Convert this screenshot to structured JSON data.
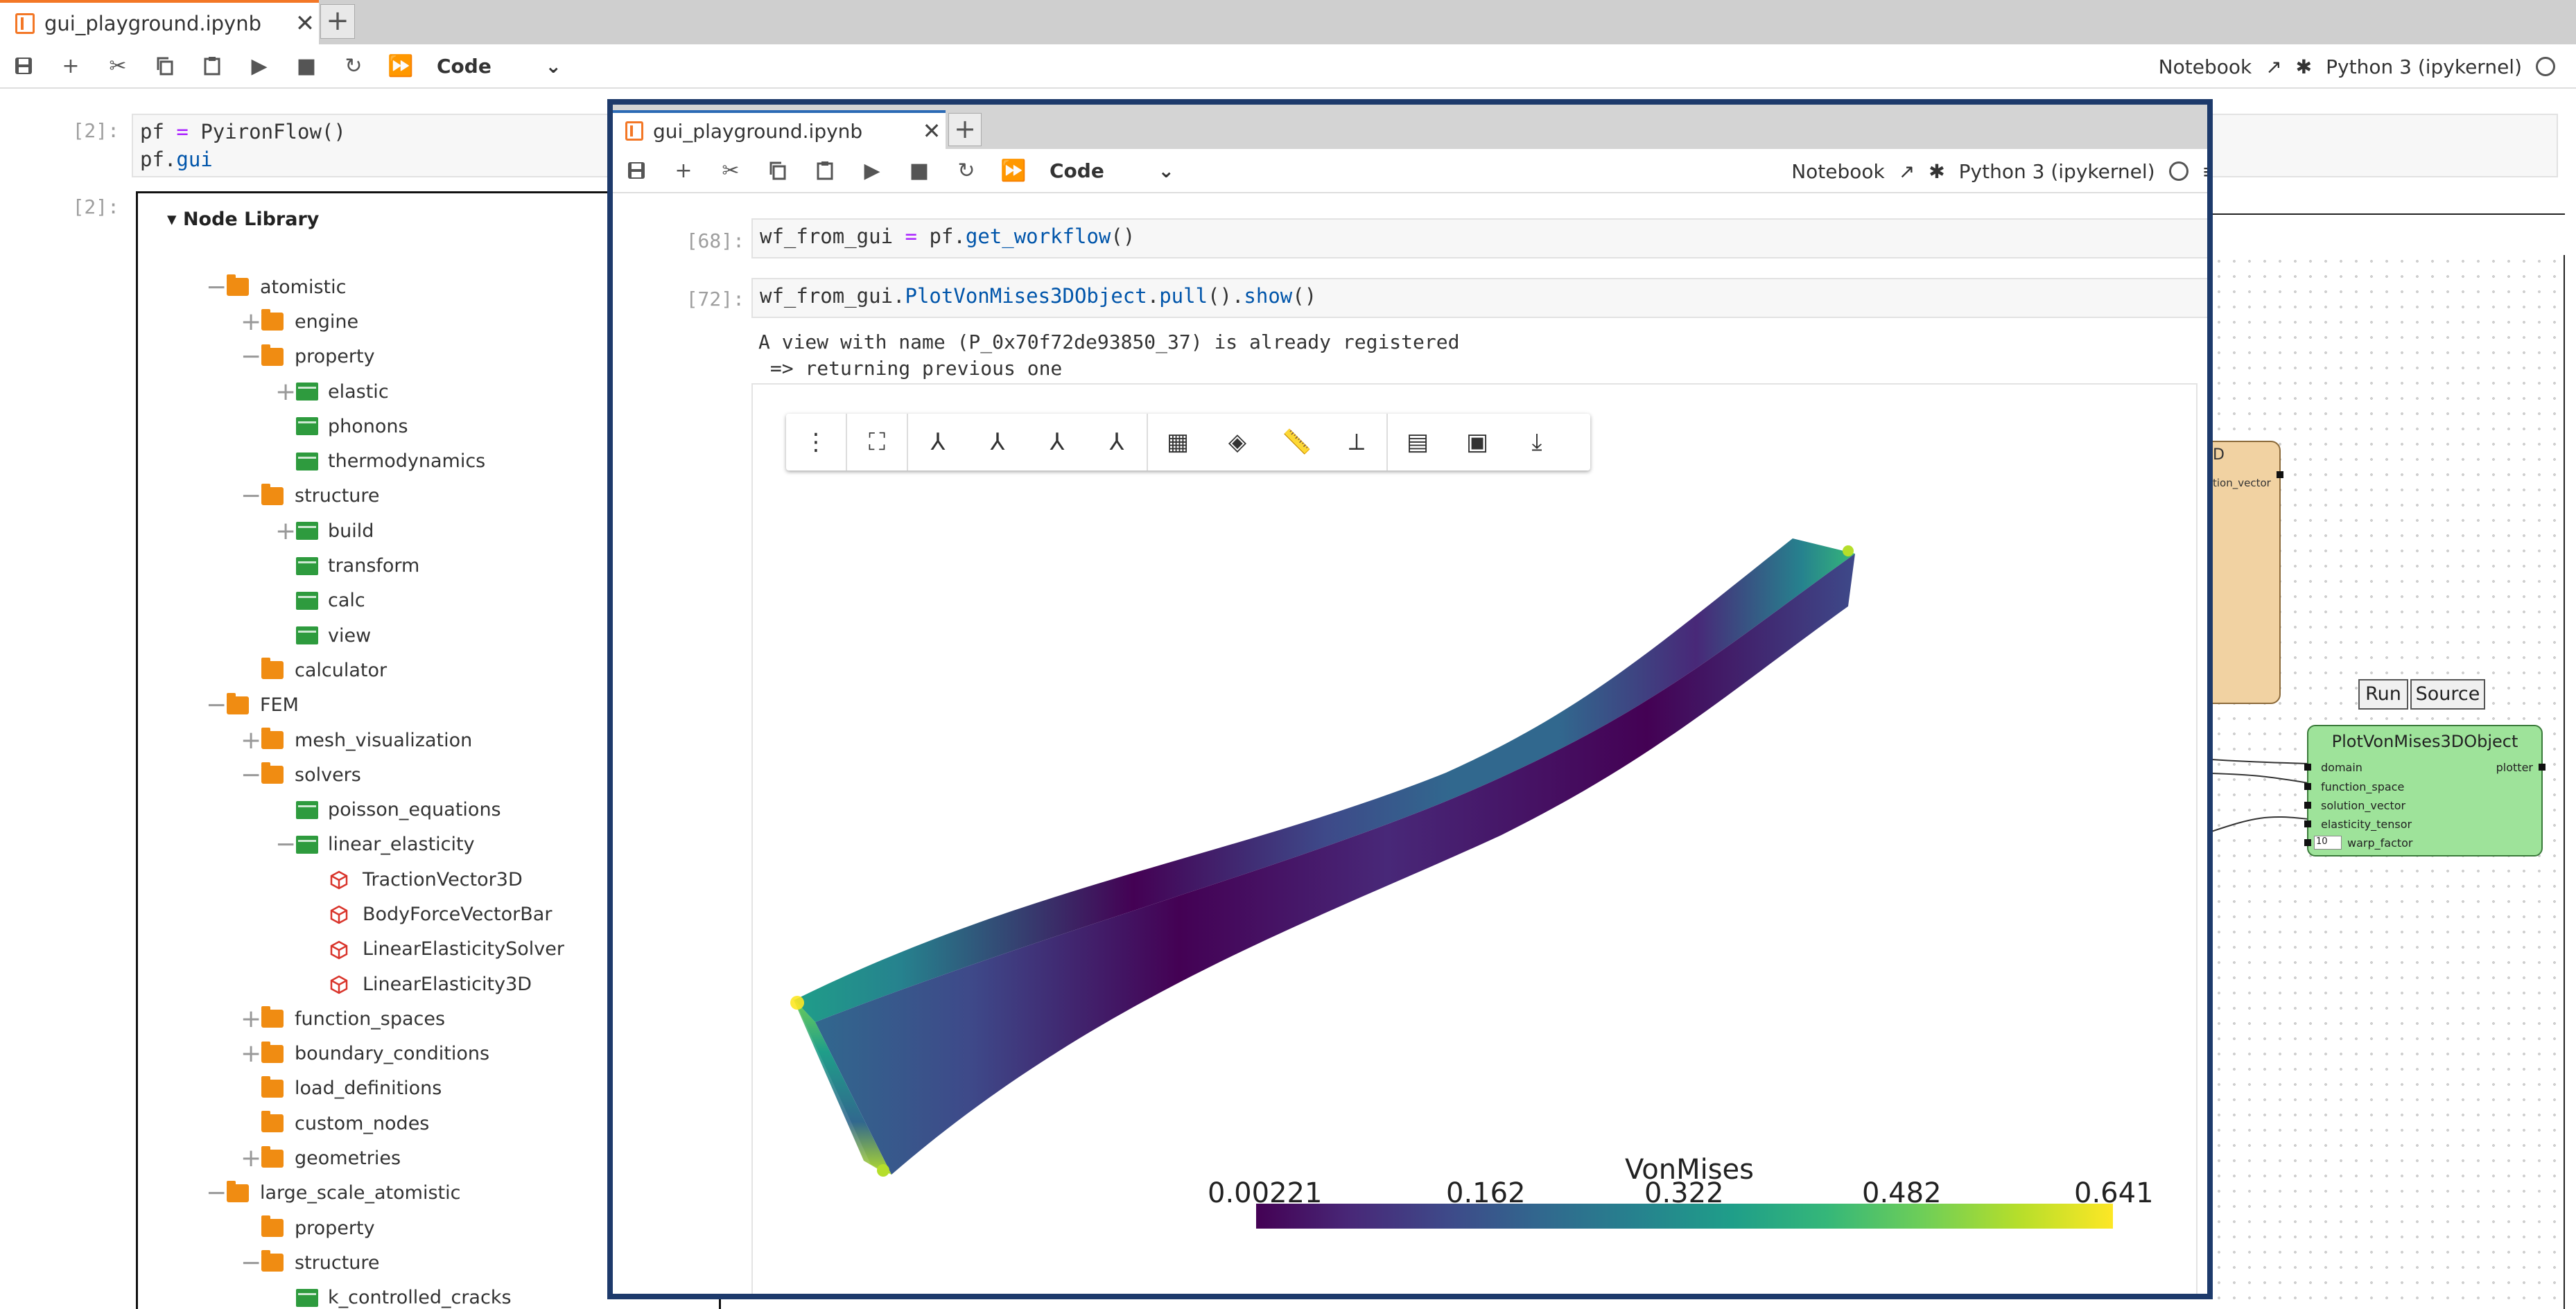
{
  "outer": {
    "tab_title": "gui_playground.ipynb",
    "cell_type": "Code",
    "notebook_label": "Notebook",
    "kernel": "Python 3 (ipykernel)",
    "cell1": {
      "prompt": "[2]:",
      "line1_var": "pf",
      "line1_op": "=",
      "line1_call": "PyironFlow()",
      "line2_obj": "pf.",
      "line2_attr": "gui"
    },
    "cell2": {
      "prompt": "[2]:"
    }
  },
  "node_library": {
    "title": "Node Library",
    "items": [
      {
        "label": "atomistic",
        "kind": "folder",
        "expander": "−",
        "level": 0
      },
      {
        "label": "engine",
        "kind": "folder",
        "expander": "+",
        "level": 1
      },
      {
        "label": "property",
        "kind": "folder",
        "expander": "−",
        "level": 1
      },
      {
        "label": "elastic",
        "kind": "module",
        "expander": "+",
        "level": 2
      },
      {
        "label": "phonons",
        "kind": "module",
        "expander": "",
        "level": 2
      },
      {
        "label": "thermodynamics",
        "kind": "module",
        "expander": "",
        "level": 2
      },
      {
        "label": "structure",
        "kind": "folder",
        "expander": "−",
        "level": 1
      },
      {
        "label": "build",
        "kind": "module",
        "expander": "+",
        "level": 2
      },
      {
        "label": "transform",
        "kind": "module",
        "expander": "",
        "level": 2
      },
      {
        "label": "calc",
        "kind": "module",
        "expander": "",
        "level": 2
      },
      {
        "label": "view",
        "kind": "module",
        "expander": "",
        "level": 2
      },
      {
        "label": "calculator",
        "kind": "folder",
        "expander": "",
        "level": 1
      },
      {
        "label": "FEM",
        "kind": "folder",
        "expander": "−",
        "level": 0
      },
      {
        "label": "mesh_visualization",
        "kind": "folder",
        "expander": "+",
        "level": 1
      },
      {
        "label": "solvers",
        "kind": "folder",
        "expander": "−",
        "level": 1
      },
      {
        "label": "poisson_equations",
        "kind": "module",
        "expander": "",
        "level": 2
      },
      {
        "label": "linear_elasticity",
        "kind": "module",
        "expander": "−",
        "level": 2
      },
      {
        "label": "TractionVector3D",
        "kind": "node",
        "expander": "",
        "level": 3
      },
      {
        "label": "BodyForceVectorBar",
        "kind": "node",
        "expander": "",
        "level": 3
      },
      {
        "label": "LinearElasticitySolver",
        "kind": "node",
        "expander": "",
        "level": 3
      },
      {
        "label": "LinearElasticity3D",
        "kind": "node",
        "expander": "",
        "level": 3
      },
      {
        "label": "function_spaces",
        "kind": "folder",
        "expander": "+",
        "level": 1
      },
      {
        "label": "boundary_conditions",
        "kind": "folder",
        "expander": "+",
        "level": 1
      },
      {
        "label": "load_definitions",
        "kind": "folder",
        "expander": "",
        "level": 1
      },
      {
        "label": "custom_nodes",
        "kind": "folder",
        "expander": "",
        "level": 1
      },
      {
        "label": "geometries",
        "kind": "folder",
        "expander": "+",
        "level": 1
      },
      {
        "label": "large_scale_atomistic",
        "kind": "folder",
        "expander": "−",
        "level": 0
      },
      {
        "label": "property",
        "kind": "folder",
        "expander": "",
        "level": 1
      },
      {
        "label": "structure",
        "kind": "folder",
        "expander": "−",
        "level": 1
      },
      {
        "label": "k_controlled_cracks",
        "kind": "module",
        "expander": "",
        "level": 2
      }
    ]
  },
  "flow": {
    "partial_node_title": "D",
    "partial_node_port": "tion_vector",
    "run_label": "Run",
    "source_label": "Source",
    "node": {
      "title": "PlotVonMises3DObject",
      "output": "plotter",
      "inputs": [
        "domain",
        "function_space",
        "solution_vector",
        "elasticity_tensor"
      ],
      "warp_value": "10",
      "warp_label": "warp_factor"
    }
  },
  "inner": {
    "tab_title": "gui_playground.ipynb",
    "cell_type": "Code",
    "notebook_label": "Notebook",
    "kernel": "Python 3 (ipykernel)",
    "cell68": {
      "prompt": "[68]:",
      "var": "wf_from_gui",
      "op": "=",
      "obj": "pf.",
      "call": "get_workflow",
      "paren": "()"
    },
    "cell72": {
      "prompt": "[72]:",
      "obj": "wf_from_gui.",
      "attr1": "PlotVonMises3DObject",
      "dot1": ".",
      "attr2": "pull",
      "mid": "().",
      "attr3": "show",
      "paren": "()"
    },
    "output_line1": "A view with name (P_0x70f72de93850_37) is already registered",
    "output_line2": " => returning previous one"
  },
  "colorbar": {
    "title": "VonMises",
    "ticks": [
      "0.00221",
      "0.162",
      "0.322",
      "0.482",
      "0.641"
    ],
    "colors": [
      "#440154",
      "#31688e",
      "#1f9e89",
      "#6ece58",
      "#fde725"
    ]
  }
}
